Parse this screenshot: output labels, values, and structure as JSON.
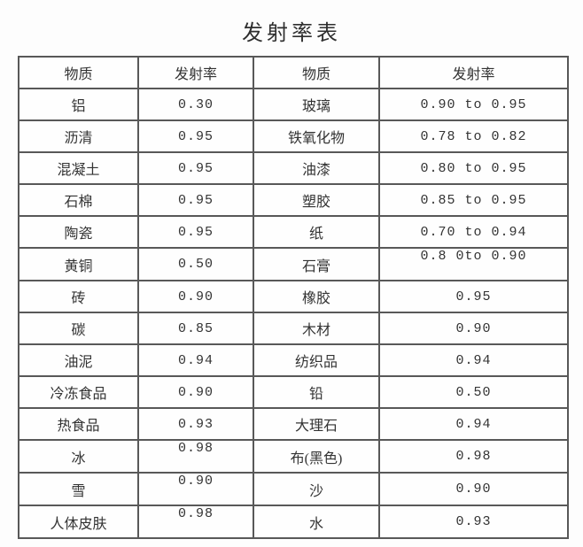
{
  "title": "发射率表",
  "colors": {
    "border": "#585858",
    "text": "#333333",
    "background": "#fdfdfd"
  },
  "table": {
    "headers": [
      "物质",
      "发射率",
      "物质",
      "发射率"
    ],
    "rows": [
      {
        "m1": "铝",
        "e1": "0.30",
        "m2": "玻璃",
        "e2": "0.90 to 0.95"
      },
      {
        "m1": "沥清",
        "e1": "0.95",
        "m2": "铁氧化物",
        "e2": "0.78 to 0.82"
      },
      {
        "m1": "混凝土",
        "e1": "0.95",
        "m2": "油漆",
        "e2": "0.80 to 0.95"
      },
      {
        "m1": "石棉",
        "e1": "0.95",
        "m2": "塑胶",
        "e2": "0.85 to 0.95"
      },
      {
        "m1": "陶瓷",
        "e1": "0.95",
        "m2": "纸",
        "e2": "0.70 to 0.94"
      },
      {
        "m1": "黄铜",
        "e1": "0.50",
        "m2": "石膏",
        "e2": "0.8 0to 0.90",
        "e2_valign": "top"
      },
      {
        "m1": "砖",
        "e1": "0.90",
        "m2": "橡胶",
        "e2": "0.95"
      },
      {
        "m1": "碳",
        "e1": "0.85",
        "m2": "木材",
        "e2": "0.90"
      },
      {
        "m1": "油泥",
        "e1": "0.94",
        "m2": "纺织品",
        "e2": "0.94"
      },
      {
        "m1": "冷冻食品",
        "e1": "0.90",
        "m2": "铅",
        "e2": "0.50"
      },
      {
        "m1": "热食品",
        "e1": "0.93",
        "m2": "大理石",
        "e2": "0.94"
      },
      {
        "m1": "冰",
        "e1": "0.98",
        "e1_valign": "top",
        "m2": "布(黑色)",
        "e2": "0.98"
      },
      {
        "m1": "雪",
        "e1": "0.90",
        "e1_valign": "top",
        "m2": "沙",
        "e2": "0.90"
      },
      {
        "m1": "人体皮肤",
        "e1": "0.98",
        "e1_valign": "top",
        "m2": "水",
        "e2": "0.93"
      }
    ]
  }
}
